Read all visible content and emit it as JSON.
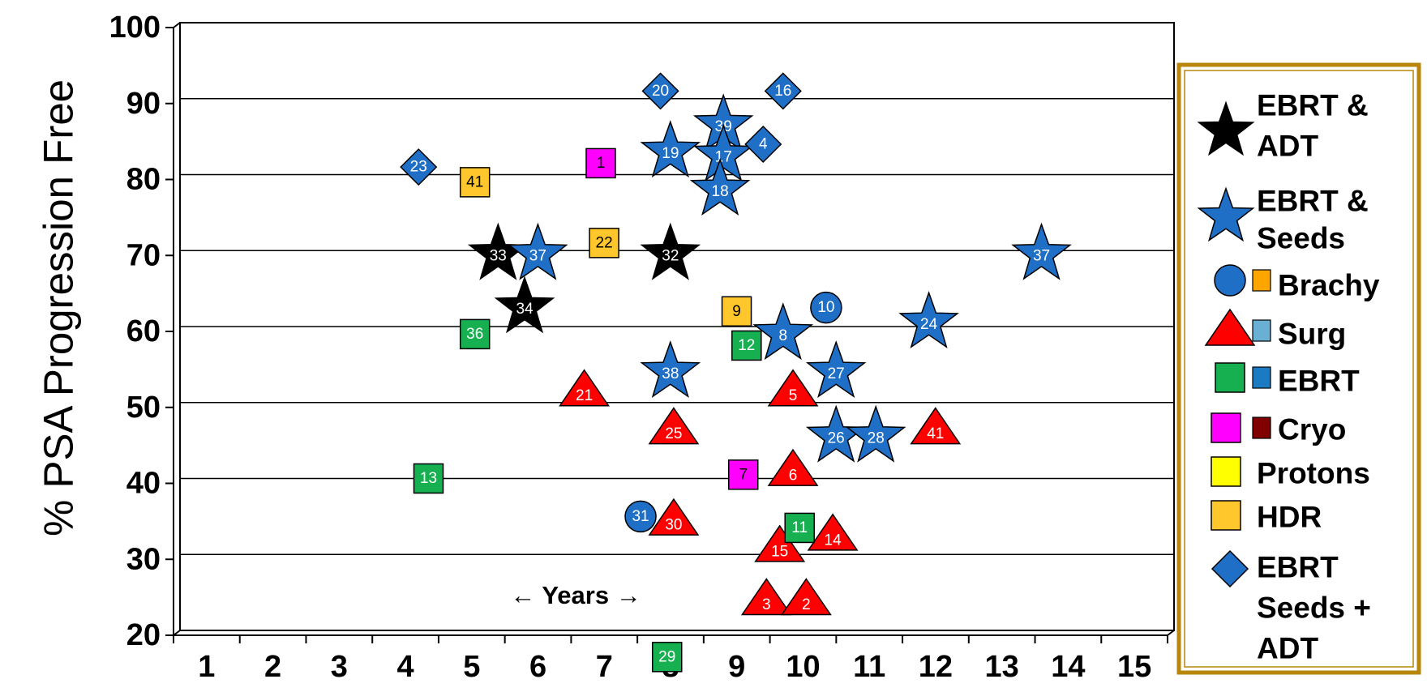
{
  "chart_data": {
    "type": "scatter",
    "ylabel": "% PSA Progression Free",
    "xlabel": "← Years →",
    "xlim": [
      0.5,
      15.5
    ],
    "ylim": [
      20,
      100
    ],
    "x_ticks": [
      "1",
      "2",
      "3",
      "4",
      "5",
      "6",
      "7",
      "8",
      "9",
      "10",
      "11",
      "12",
      "13",
      "14",
      "15"
    ],
    "y_ticks": [
      "20",
      "30",
      "40",
      "50",
      "60",
      "70",
      "80",
      "90",
      "100"
    ],
    "grid": "horizontal",
    "legend_position": "right",
    "categories": {
      "ebrt_adt": {
        "color": "#000000",
        "marker": "star"
      },
      "ebrt_seeds": {
        "color": "#1f6fc6",
        "marker": "star"
      },
      "brachy": {
        "color": "#1f6fc6",
        "marker": "circle"
      },
      "surg": {
        "color": "#ff0000",
        "marker": "triangle"
      },
      "ebrt": {
        "color": "#17b050",
        "marker": "square"
      },
      "cryo": {
        "color": "#ff00ff",
        "marker": "square"
      },
      "protons": {
        "color": "#ffff00",
        "marker": "square"
      },
      "hdr": {
        "color": "#ffc72c",
        "marker": "square"
      },
      "ebrt_seeds_adt": {
        "color": "#1f6fc6",
        "marker": "diamond"
      }
    },
    "points": [
      {
        "label": "33",
        "x": 5.3,
        "y": 69.5,
        "cat": "ebrt_adt"
      },
      {
        "label": "34",
        "x": 5.7,
        "y": 62.5,
        "cat": "ebrt_adt"
      },
      {
        "label": "32",
        "x": 7.9,
        "y": 69.5,
        "cat": "ebrt_adt"
      },
      {
        "label": "37",
        "x": 5.9,
        "y": 69.5,
        "cat": "ebrt_seeds"
      },
      {
        "label": "19",
        "x": 7.9,
        "y": 83,
        "cat": "ebrt_seeds"
      },
      {
        "label": "39",
        "x": 8.7,
        "y": 86.5,
        "cat": "ebrt_seeds"
      },
      {
        "label": "17",
        "x": 8.7,
        "y": 82.5,
        "cat": "ebrt_seeds"
      },
      {
        "label": "18",
        "x": 8.65,
        "y": 78,
        "cat": "ebrt_seeds"
      },
      {
        "label": "38",
        "x": 7.9,
        "y": 54,
        "cat": "ebrt_seeds"
      },
      {
        "label": "8",
        "x": 9.6,
        "y": 59,
        "cat": "ebrt_seeds"
      },
      {
        "label": "27",
        "x": 10.4,
        "y": 54,
        "cat": "ebrt_seeds"
      },
      {
        "label": "26",
        "x": 10.4,
        "y": 45.5,
        "cat": "ebrt_seeds"
      },
      {
        "label": "28",
        "x": 11.0,
        "y": 45.5,
        "cat": "ebrt_seeds"
      },
      {
        "label": "24",
        "x": 11.8,
        "y": 60.5,
        "cat": "ebrt_seeds"
      },
      {
        "label": "37",
        "x": 13.5,
        "y": 69.5,
        "cat": "ebrt_seeds"
      },
      {
        "label": "10",
        "x": 10.25,
        "y": 62.5,
        "cat": "brachy"
      },
      {
        "label": "31",
        "x": 7.45,
        "y": 35,
        "cat": "brachy"
      },
      {
        "label": "21",
        "x": 6.6,
        "y": 51.5,
        "cat": "surg"
      },
      {
        "label": "25",
        "x": 7.95,
        "y": 46.5,
        "cat": "surg"
      },
      {
        "label": "30",
        "x": 7.95,
        "y": 34.5,
        "cat": "surg"
      },
      {
        "label": "5",
        "x": 9.75,
        "y": 51.5,
        "cat": "surg"
      },
      {
        "label": "6",
        "x": 9.75,
        "y": 41,
        "cat": "surg"
      },
      {
        "label": "15",
        "x": 9.55,
        "y": 31,
        "cat": "surg"
      },
      {
        "label": "14",
        "x": 10.35,
        "y": 32.5,
        "cat": "surg"
      },
      {
        "label": "41",
        "x": 11.9,
        "y": 46.5,
        "cat": "surg"
      },
      {
        "label": "3",
        "x": 9.35,
        "y": 24,
        "cat": "surg"
      },
      {
        "label": "2",
        "x": 9.95,
        "y": 24,
        "cat": "surg"
      },
      {
        "label": "36",
        "x": 4.95,
        "y": 59,
        "cat": "ebrt"
      },
      {
        "label": "13",
        "x": 4.25,
        "y": 40,
        "cat": "ebrt"
      },
      {
        "label": "12",
        "x": 9.05,
        "y": 57.5,
        "cat": "ebrt"
      },
      {
        "label": "11",
        "x": 9.85,
        "y": 33.5,
        "cat": "ebrt"
      },
      {
        "label": "29",
        "x": 7.85,
        "y": 16.5,
        "cat": "ebrt"
      },
      {
        "label": "1",
        "x": 6.85,
        "y": 81.5,
        "cat": "cryo"
      },
      {
        "label": "7",
        "x": 9.0,
        "y": 40.5,
        "cat": "cryo"
      },
      {
        "label": "9",
        "x": 8.9,
        "y": 62,
        "cat": "hdr"
      },
      {
        "label": "41",
        "x": 4.95,
        "y": 79,
        "cat": "hdr"
      },
      {
        "label": "22",
        "x": 6.9,
        "y": 71,
        "cat": "hdr"
      },
      {
        "label": "20",
        "x": 7.75,
        "y": 91,
        "cat": "ebrt_seeds_adt"
      },
      {
        "label": "16",
        "x": 9.6,
        "y": 91,
        "cat": "ebrt_seeds_adt"
      },
      {
        "label": "4",
        "x": 9.3,
        "y": 84,
        "cat": "ebrt_seeds_adt"
      },
      {
        "label": "23",
        "x": 4.1,
        "y": 81,
        "cat": "ebrt_seeds_adt"
      }
    ],
    "legend": [
      {
        "key": "ebrt_adt",
        "text": [
          "EBRT &",
          "ADT"
        ]
      },
      {
        "key": "ebrt_seeds",
        "text": [
          "EBRT &",
          "Seeds"
        ]
      },
      {
        "key": "brachy",
        "text": [
          "Brachy"
        ],
        "extra_color": "#ffa500"
      },
      {
        "key": "surg",
        "text": [
          "Surg"
        ],
        "extra_color": "#6ab0d4"
      },
      {
        "key": "ebrt",
        "text": [
          "EBRT"
        ],
        "extra_color": "#1a7bc2"
      },
      {
        "key": "cryo",
        "text": [
          "Cryo"
        ],
        "extra_color": "#800000"
      },
      {
        "key": "protons",
        "text": [
          "Protons"
        ]
      },
      {
        "key": "hdr",
        "text": [
          "HDR"
        ]
      },
      {
        "key": "ebrt_seeds_adt",
        "text": [
          "EBRT",
          "Seeds +",
          "ADT"
        ]
      }
    ]
  }
}
